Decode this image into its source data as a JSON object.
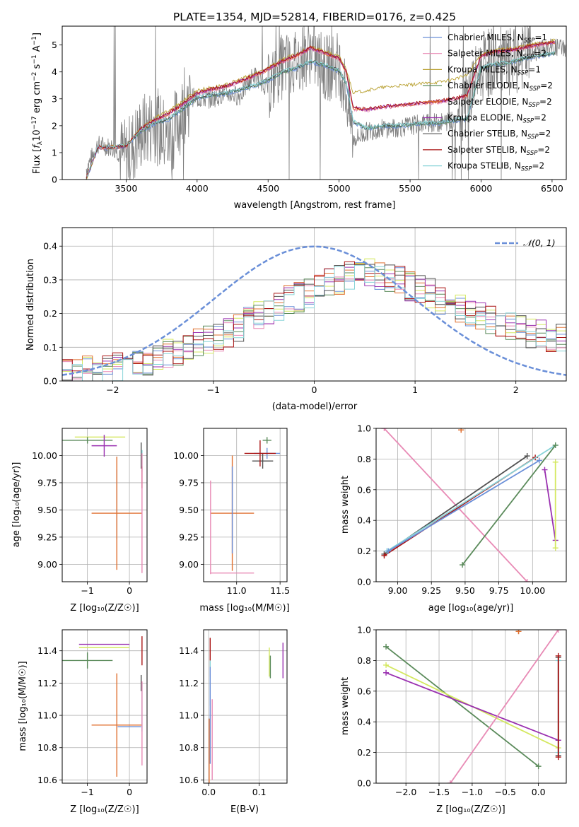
{
  "chart_data": [
    {
      "id": "spectrum",
      "type": "line",
      "title": "PLATE=1354, MJD=52814, FIBERID=0176, z=0.425",
      "xlabel": "wavelength [Angstrom, rest frame]",
      "ylabel": "Flux [f_λ 10^-17 erg cm^-2 s^-1 A^-1]",
      "xlim": [
        3050,
        6600
      ],
      "ylim": [
        0,
        5.7
      ],
      "xticks": [
        3500,
        4000,
        4500,
        5000,
        5500,
        6000,
        6500
      ],
      "yticks": [
        0,
        1,
        2,
        3,
        4,
        5
      ],
      "grid": false,
      "legend_position": "top-right",
      "observed": {
        "name": "",
        "color": "#808080",
        "x": [
          3220,
          3300,
          3400,
          3500,
          3600,
          3700,
          3800,
          3900,
          3950,
          4000,
          4100,
          4200,
          4300,
          4400,
          4500,
          4600,
          4700,
          4800,
          4850,
          4900,
          5000,
          5050,
          5100,
          5150,
          5200,
          5300,
          5400,
          5500,
          5600,
          5700,
          5800,
          5900,
          6000,
          6100,
          6200,
          6300,
          6400,
          6500
        ],
        "y": [
          0.4,
          1.3,
          1.2,
          0.8,
          1.7,
          2.1,
          1.4,
          2.6,
          3.1,
          3.0,
          3.0,
          3.2,
          3.1,
          3.9,
          3.4,
          4.2,
          4.4,
          4.8,
          4.4,
          4.1,
          4.3,
          3.2,
          1.5,
          1.6,
          1.8,
          1.9,
          1.9,
          2.0,
          2.1,
          2.1,
          2.2,
          2.9,
          4.2,
          4.4,
          4.3,
          4.6,
          4.8,
          4.9
        ]
      },
      "series": [
        {
          "name": "Chabrier MILES, N_SSP=1",
          "color": "#6a8fd8",
          "group": "low"
        },
        {
          "name": "Salpeter MILES, N_SSP=2",
          "color": "#e88ab5",
          "group": "mid"
        },
        {
          "name": "Kroupa MILES, N_SSP=1",
          "color": "#b8a030",
          "group": "high"
        },
        {
          "name": "Chabrier ELODIE, N_SSP=2",
          "color": "#5a8a5a",
          "group": "low"
        },
        {
          "name": "Salpeter ELODIE, N_SSP=2",
          "color": "#e07030",
          "group": "mid"
        },
        {
          "name": "Kroupa ELODIE, N_SSP=2",
          "color": "#9a30b0",
          "group": "mid"
        },
        {
          "name": "Chabrier STELIB, N_SSP=2",
          "color": "#505050",
          "group": "low"
        },
        {
          "name": "Salpeter STELIB, N_SSP=2",
          "color": "#aa1515",
          "group": "mid"
        },
        {
          "name": "Kroupa STELIB, N_SSP=2",
          "color": "#88d4d8",
          "group": "low"
        }
      ],
      "model_x": [
        3220,
        3300,
        3400,
        3500,
        3600,
        3700,
        3800,
        3900,
        4000,
        4100,
        4200,
        4300,
        4400,
        4500,
        4600,
        4700,
        4800,
        4900,
        5000,
        5050,
        5100,
        5200,
        5300,
        5400,
        5500,
        5600,
        5700,
        5800,
        5900,
        6000,
        6100,
        6200,
        6300,
        6400,
        6500
      ],
      "model_groups": {
        "low": [
          0.0,
          1.15,
          1.15,
          1.2,
          1.75,
          2.05,
          2.2,
          2.6,
          3.0,
          3.1,
          3.15,
          3.3,
          3.45,
          3.65,
          3.95,
          4.1,
          4.35,
          4.2,
          4.0,
          3.55,
          2.1,
          1.85,
          1.95,
          1.95,
          2.0,
          2.05,
          2.05,
          2.15,
          2.2,
          4.1,
          4.25,
          4.3,
          4.45,
          4.55,
          4.65
        ],
        "mid": [
          0.0,
          1.15,
          1.15,
          1.2,
          1.8,
          2.15,
          2.4,
          2.75,
          3.15,
          3.3,
          3.4,
          3.6,
          3.8,
          4.05,
          4.35,
          4.55,
          4.85,
          4.65,
          4.45,
          3.95,
          2.6,
          2.55,
          2.65,
          2.7,
          2.75,
          2.8,
          2.85,
          2.95,
          3.05,
          4.55,
          4.7,
          4.75,
          4.85,
          4.95,
          5.05
        ],
        "high": [
          0.0,
          1.2,
          1.2,
          1.25,
          1.85,
          2.25,
          2.55,
          2.9,
          3.3,
          3.4,
          3.5,
          3.7,
          3.9,
          4.15,
          4.45,
          4.65,
          4.9,
          4.75,
          4.55,
          4.1,
          3.2,
          3.3,
          3.4,
          3.45,
          3.5,
          3.55,
          3.6,
          3.7,
          3.85,
          4.65,
          4.8,
          4.85,
          4.95,
          5.05,
          5.15
        ]
      }
    },
    {
      "id": "residuals",
      "type": "line",
      "title": "",
      "xlabel": "(data-model)/error",
      "ylabel": "Normed distribution",
      "xlim": [
        -2.5,
        2.5
      ],
      "ylim": [
        0,
        0.455
      ],
      "xticks": [
        -2,
        -1,
        0,
        1,
        2
      ],
      "yticks": [
        0.0,
        0.1,
        0.2,
        0.3,
        0.4
      ],
      "grid": true,
      "legend_position": "top-right",
      "reference": {
        "name": "𝒩(0, 1)",
        "color": "#6a8fd8",
        "mean": 0,
        "sigma": 1
      },
      "bin_edges": [
        -2.5,
        -2.4,
        -2.3,
        -2.2,
        -2.1,
        -2.0,
        -1.9,
        -1.8,
        -1.7,
        -1.6,
        -1.5,
        -1.4,
        -1.3,
        -1.2,
        -1.1,
        -1.0,
        -0.9,
        -0.8,
        -0.7,
        -0.6,
        -0.5,
        -0.4,
        -0.3,
        -0.2,
        -0.1,
        0.0,
        0.1,
        0.2,
        0.3,
        0.4,
        0.5,
        0.6,
        0.7,
        0.8,
        0.9,
        1.0,
        1.1,
        1.2,
        1.3,
        1.4,
        1.5,
        1.6,
        1.7,
        1.8,
        1.9,
        2.0,
        2.1,
        2.2,
        2.3,
        2.4,
        2.5
      ],
      "hist_base": [
        0.02,
        0.02,
        0.03,
        0.03,
        0.03,
        0.04,
        0.04,
        0.05,
        0.06,
        0.07,
        0.08,
        0.09,
        0.1,
        0.11,
        0.12,
        0.13,
        0.14,
        0.16,
        0.18,
        0.2,
        0.21,
        0.22,
        0.24,
        0.25,
        0.26,
        0.28,
        0.29,
        0.3,
        0.31,
        0.32,
        0.32,
        0.31,
        0.31,
        0.3,
        0.28,
        0.27,
        0.26,
        0.24,
        0.23,
        0.21,
        0.2,
        0.19,
        0.18,
        0.17,
        0.16,
        0.15,
        0.14,
        0.14,
        0.13,
        0.13
      ],
      "hist_colors": [
        "#6a8fd8",
        "#e88ab5",
        "#d4e860",
        "#5a8a5a",
        "#e07030",
        "#9a30b0",
        "#505050",
        "#aa1515",
        "#88d4d8"
      ]
    },
    {
      "id": "age-vs-Z",
      "type": "scatter",
      "xlabel": "Z [log₁₀(Z/Z☉)]",
      "ylabel": "age  [log₁₀(age/yr)]",
      "xlim": [
        -1.6,
        0.42
      ],
      "ylim": [
        8.84,
        10.25
      ],
      "xticks": [
        -1,
        0
      ],
      "yticks": [
        9.0,
        9.25,
        9.5,
        9.75,
        10.0
      ],
      "grid": true,
      "points": [
        {
          "color": "#d4e860",
          "x": -0.7,
          "y": 10.17,
          "xerr": 0.6,
          "yerr": 0.0
        },
        {
          "color": "#5a8a5a",
          "x": -1.0,
          "y": 10.14,
          "xerr": 0.6,
          "yerr": 0.03
        },
        {
          "color": "#9a30b0",
          "x": -0.6,
          "y": 10.09,
          "xerr": 0.3,
          "yerr": 0.1
        },
        {
          "color": "#505050",
          "x": 0.28,
          "y": 10.0,
          "xerr": 0.0,
          "yerr": 0.12
        },
        {
          "color": "#88d4d8",
          "x": 0.3,
          "y": 9.95,
          "xerr": 0.0,
          "yerr": 0.1
        },
        {
          "color": "#6a8fd8",
          "x": -0.3,
          "y": 9.55,
          "xerr": 0.0,
          "yerr": 0.32
        },
        {
          "color": "#e07030",
          "x": -0.3,
          "y": 9.47,
          "xerr": 0.6,
          "yerr": 0.52
        },
        {
          "color": "#aa1515",
          "x": 0.3,
          "y": 9.8,
          "xerr": 0.0,
          "yerr": 0.1
        },
        {
          "color": "#e88ab5",
          "x": 0.3,
          "y": 9.47,
          "xerr": 0.0,
          "yerr": 0.55
        }
      ]
    },
    {
      "id": "age-vs-mass",
      "type": "scatter",
      "xlabel": "mass [log₁₀(M/M☉)]",
      "ylabel": "",
      "xlim": [
        10.62,
        11.58
      ],
      "ylim": [
        8.84,
        10.25
      ],
      "xticks": [
        11.0,
        11.5
      ],
      "yticks": [
        9.0,
        9.25,
        9.5,
        9.75,
        10.0
      ],
      "grid": true,
      "points": [
        {
          "color": "#505050",
          "x": 11.3,
          "y": 9.95,
          "xerr": 0.12,
          "yerr": 0.07
        },
        {
          "color": "#5a8a5a",
          "x": 11.35,
          "y": 10.14,
          "xerr": 0.05,
          "yerr": 0.03
        },
        {
          "color": "#6a8fd8",
          "x": 11.35,
          "y": 10.02,
          "xerr": 0.15,
          "yerr": 0.05
        },
        {
          "color": "#aa1515",
          "x": 11.27,
          "y": 10.02,
          "xerr": 0.18,
          "yerr": 0.12
        },
        {
          "color": "#e07030",
          "x": 10.95,
          "y": 9.47,
          "xerr": 0.25,
          "yerr": 0.53
        },
        {
          "color": "#6a8fd8",
          "x": 10.95,
          "y": 9.5,
          "xerr": 0.0,
          "yerr": 0.4
        },
        {
          "color": "#e88ab5",
          "x": 10.7,
          "y": 9.34,
          "xerr": 0.0,
          "yerr": 0.43
        },
        {
          "color": "#e88ab5",
          "x": 10.95,
          "y": 8.92,
          "xerr": 0.25,
          "yerr": 0.0
        }
      ]
    },
    {
      "id": "weight-vs-age",
      "type": "line",
      "xlabel": "age  [log₁₀(age/yr)]",
      "ylabel": "mass weight",
      "xlim": [
        8.84,
        10.25
      ],
      "ylim": [
        0,
        1
      ],
      "xticks": [
        9.0,
        9.25,
        9.5,
        9.75,
        10.0
      ],
      "yticks": [
        0.0,
        0.2,
        0.4,
        0.6,
        0.8,
        1.0
      ],
      "grid": true,
      "series": [
        {
          "color": "#e88ab5",
          "x": [
            8.9,
            9.96
          ],
          "y": [
            1.0,
            0.0
          ]
        },
        {
          "color": "#505050",
          "x": [
            8.9,
            9.96
          ],
          "y": [
            0.18,
            0.82
          ]
        },
        {
          "color": "#aa1515",
          "x": [
            8.9,
            10.02
          ],
          "y": [
            0.17,
            0.81
          ]
        },
        {
          "color": "#88d4d8",
          "x": [
            8.92,
            10.17
          ],
          "y": [
            0.2,
            0.89
          ]
        },
        {
          "color": "#6a8fd8",
          "x": [
            8.93,
            10.05
          ],
          "y": [
            0.2,
            0.79
          ]
        },
        {
          "color": "#5a8a5a",
          "x": [
            9.48,
            10.17
          ],
          "y": [
            0.11,
            0.89
          ]
        },
        {
          "color": "#9a30b0",
          "x": [
            10.09,
            10.17
          ],
          "y": [
            0.73,
            0.27
          ]
        },
        {
          "color": "#d4e860",
          "x": [
            10.17,
            10.17
          ],
          "y": [
            0.22,
            0.78
          ]
        },
        {
          "color": "#e07030",
          "x": [
            9.47,
            9.47
          ],
          "y": [
            0.99,
            0.99
          ]
        }
      ]
    },
    {
      "id": "mass-vs-Z",
      "type": "scatter",
      "xlabel": "Z [log₁₀(Z/Z☉)]",
      "ylabel": "mass [log₁₀(M/M☉)]",
      "xlim": [
        -1.6,
        0.42
      ],
      "ylim": [
        10.58,
        11.53
      ],
      "xticks": [
        -1,
        0
      ],
      "yticks": [
        10.6,
        10.8,
        11.0,
        11.2,
        11.4
      ],
      "grid": true,
      "points": [
        {
          "color": "#9a30b0",
          "x": -0.6,
          "y": 11.44,
          "xerr": 0.6,
          "yerr": 0.0
        },
        {
          "color": "#d4e860",
          "x": -0.6,
          "y": 11.42,
          "xerr": 0.6,
          "yerr": 0.0
        },
        {
          "color": "#5a8a5a",
          "x": -1.0,
          "y": 11.34,
          "xerr": 0.6,
          "yerr": 0.05
        },
        {
          "color": "#505050",
          "x": 0.28,
          "y": 11.2,
          "xerr": 0.0,
          "yerr": 0.05
        },
        {
          "color": "#aa1515",
          "x": 0.3,
          "y": 11.4,
          "xerr": 0.0,
          "yerr": 0.09
        },
        {
          "color": "#e07030",
          "x": -0.3,
          "y": 10.94,
          "xerr": 0.6,
          "yerr": 0.32
        },
        {
          "color": "#6a8fd8",
          "x": 0.0,
          "y": 10.93,
          "xerr": 0.28,
          "yerr": 0.0
        },
        {
          "color": "#88d4d8",
          "x": 0.3,
          "y": 11.05,
          "xerr": 0.0,
          "yerr": 0.15
        },
        {
          "color": "#e88ab5",
          "x": 0.3,
          "y": 10.95,
          "xerr": 0.0,
          "yerr": 0.26
        }
      ]
    },
    {
      "id": "mass-vs-ebv",
      "type": "scatter",
      "xlabel": "E(B-V)",
      "ylabel": "",
      "xlim": [
        -0.01,
        0.155
      ],
      "ylim": [
        10.58,
        11.53
      ],
      "xticks": [
        0.0,
        0.1
      ],
      "yticks": [
        10.6,
        10.8,
        11.0,
        11.2,
        11.4
      ],
      "grid": true,
      "points": [
        {
          "color": "#aa1515",
          "x": 0.003,
          "y": 11.36,
          "xerr": 0.0,
          "yerr": 0.12
        },
        {
          "color": "#88d4d8",
          "x": 0.003,
          "y": 11.2,
          "xerr": 0.0,
          "yerr": 0.14
        },
        {
          "color": "#6a8fd8",
          "x": 0.003,
          "y": 11.0,
          "xerr": 0.0,
          "yerr": 0.3
        },
        {
          "color": "#e07030",
          "x": 0.001,
          "y": 10.78,
          "xerr": 0.0,
          "yerr": 0.2
        },
        {
          "color": "#e88ab5",
          "x": 0.007,
          "y": 10.85,
          "xerr": 0.0,
          "yerr": 0.25
        },
        {
          "color": "#d4e860",
          "x": 0.12,
          "y": 11.33,
          "xerr": 0.0,
          "yerr": 0.09
        },
        {
          "color": "#5a8a5a",
          "x": 0.122,
          "y": 11.3,
          "xerr": 0.0,
          "yerr": 0.07
        },
        {
          "color": "#9a30b0",
          "x": 0.147,
          "y": 11.34,
          "xerr": 0.0,
          "yerr": 0.11
        }
      ]
    },
    {
      "id": "weight-vs-Z",
      "type": "line",
      "xlabel": "Z [log₁₀(Z/Z☉)]",
      "ylabel": "mass weight",
      "xlim": [
        -2.45,
        0.42
      ],
      "ylim": [
        0,
        1
      ],
      "xticks": [
        -2.0,
        -1.5,
        -1.0,
        -0.5,
        0.0
      ],
      "yticks": [
        0.0,
        0.2,
        0.4,
        0.6,
        0.8,
        1.0
      ],
      "grid": true,
      "series": [
        {
          "color": "#5a8a5a",
          "x": [
            -2.3,
            0.0
          ],
          "y": [
            0.89,
            0.11
          ]
        },
        {
          "color": "#d4e860",
          "x": [
            -2.3,
            0.3
          ],
          "y": [
            0.77,
            0.23
          ]
        },
        {
          "color": "#9a30b0",
          "x": [
            -2.3,
            0.3
          ],
          "y": [
            0.72,
            0.28
          ]
        },
        {
          "color": "#e88ab5",
          "x": [
            -1.33,
            0.3
          ],
          "y": [
            0.0,
            1.0
          ]
        },
        {
          "color": "#88d4d8",
          "x": [
            0.3,
            0.3
          ],
          "y": [
            0.2,
            0.8
          ]
        },
        {
          "color": "#505050",
          "x": [
            0.3,
            0.3
          ],
          "y": [
            0.18,
            0.82
          ]
        },
        {
          "color": "#aa1515",
          "x": [
            0.3,
            0.3
          ],
          "y": [
            0.17,
            0.83
          ]
        },
        {
          "color": "#e07030",
          "x": [
            -0.3,
            -0.3
          ],
          "y": [
            0.99,
            0.99
          ]
        }
      ]
    }
  ]
}
